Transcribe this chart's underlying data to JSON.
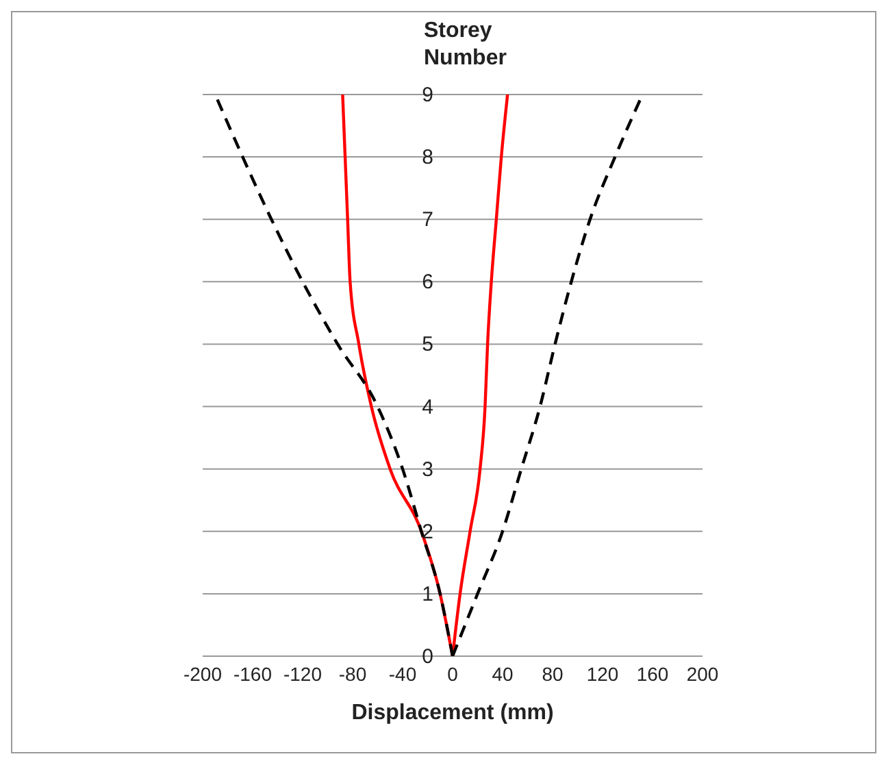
{
  "chart_data": {
    "type": "line",
    "xlabel": "Displacement (mm)",
    "ylabel": "Storey Number",
    "xlim": [
      -200,
      200
    ],
    "xticks": [
      -200,
      -160,
      -120,
      -80,
      -40,
      0,
      40,
      80,
      120,
      160,
      200
    ],
    "ylim": [
      0,
      9
    ],
    "yticks": [
      0,
      1,
      2,
      3,
      4,
      5,
      6,
      7,
      8,
      9
    ],
    "grid": "y",
    "marker": "none",
    "series": [
      {
        "color": "#ff0000",
        "line_style": "solid",
        "x": [
          0,
          6,
          14,
          22,
          26,
          28,
          31,
          35,
          39,
          44
        ],
        "values": [
          0,
          1,
          2,
          3,
          4,
          5,
          6,
          7,
          8,
          9
        ]
      },
      {
        "color": "#ff0000",
        "line_style": "solid",
        "x": [
          0,
          -10,
          -25,
          -50,
          -65,
          -75,
          -82,
          -84,
          -86,
          -88
        ],
        "values": [
          0,
          1,
          2,
          3,
          4,
          5,
          6,
          7,
          8,
          9
        ]
      },
      {
        "color": "#000000",
        "line_style": "dashed",
        "x": [
          0,
          20,
          40,
          55,
          70,
          82,
          95,
          110,
          130,
          152
        ],
        "values": [
          0,
          1,
          2,
          3,
          4,
          5,
          6,
          7,
          8,
          9
        ]
      },
      {
        "color": "#000000",
        "line_style": "dashed",
        "x": [
          0,
          -10,
          -25,
          -40,
          -60,
          -92,
          -120,
          -145,
          -168,
          -190
        ],
        "values": [
          0,
          1,
          2,
          3,
          4,
          5,
          6,
          7,
          8,
          9
        ]
      }
    ]
  }
}
